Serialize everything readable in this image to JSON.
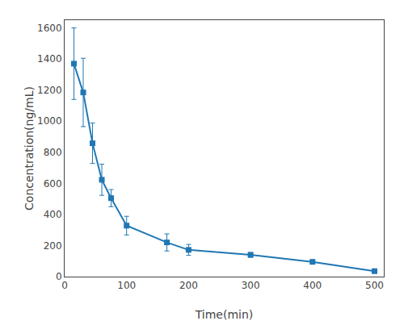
{
  "chart_data": {
    "type": "line",
    "x": [
      15,
      30,
      45,
      60,
      75,
      100,
      165,
      200,
      300,
      400,
      500
    ],
    "values": [
      1370,
      1185,
      858,
      623,
      505,
      328,
      220,
      172,
      140,
      95,
      35
    ],
    "errors": [
      230,
      220,
      130,
      100,
      55,
      60,
      55,
      35,
      15,
      12,
      8
    ],
    "marker": "square",
    "xlabel": "Time(min)",
    "ylabel": "Concentration(ng/mL)",
    "xlim": [
      0,
      515
    ],
    "ylim": [
      0,
      1650
    ],
    "xticks": [
      0,
      100,
      200,
      300,
      400,
      500
    ],
    "yticks": [
      0,
      200,
      400,
      600,
      800,
      1000,
      1200,
      1400,
      1600
    ],
    "grid": false
  }
}
